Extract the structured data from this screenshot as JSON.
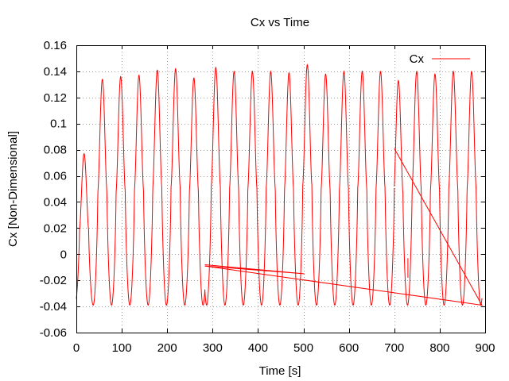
{
  "chart_data": {
    "type": "line",
    "title": "Cx vs Time",
    "xlabel": "Time [s]",
    "ylabel": "Cx [Non-Dimensional]",
    "xlim": [
      0,
      900
    ],
    "ylim": [
      -0.06,
      0.16
    ],
    "grid": true,
    "legend_position": "top-right",
    "xticks": [
      "0",
      "100",
      "200",
      "300",
      "400",
      "500",
      "600",
      "700",
      "800",
      "900"
    ],
    "yticks": [
      "-0.06",
      "-0.04",
      "-0.02",
      "0",
      "0.02",
      "0.04",
      "0.06",
      "0.08",
      "0.1",
      "0.12",
      "0.14",
      "0.16"
    ],
    "colors": {
      "series": "#ff0000"
    },
    "series": [
      {
        "name": "Cx",
        "segments": [
          {
            "start": 0,
            "end": 283,
            "period": 40.3,
            "first_peak_time": 17,
            "min": -0.039,
            "peaks": [
              0.077,
              0.134,
              0.136,
              0.137,
              0.141,
              0.142,
              0.135,
              0.134
            ]
          },
          {
            "points": [
              [
                283,
                -0.008
              ],
              [
                502,
                -0.015
              ],
              [
                283,
                -0.009
              ]
            ]
          },
          {
            "start": 283,
            "end": 700,
            "period": 40.3,
            "first_peak_time": 307,
            "min": -0.039,
            "peaks": [
              0.143,
              0.14,
              0.14,
              0.14,
              0.139,
              0.145,
              0.138,
              0.14,
              0.14,
              0.14
            ]
          },
          {
            "points": [
              [
                700,
                0.081
              ],
              [
                893,
                -0.039
              ],
              [
                283,
                -0.009
              ]
            ]
          },
          {
            "points": [
              [
                730,
                -0.003
              ],
              [
                730,
                -0.018
              ]
            ]
          },
          {
            "start": 700,
            "end": 893,
            "period": 40.3,
            "first_peak_time": 709,
            "min": -0.039,
            "peaks": [
              0.133,
              0.14,
              0.138,
              0.14,
              0.14
            ]
          }
        ]
      }
    ]
  }
}
